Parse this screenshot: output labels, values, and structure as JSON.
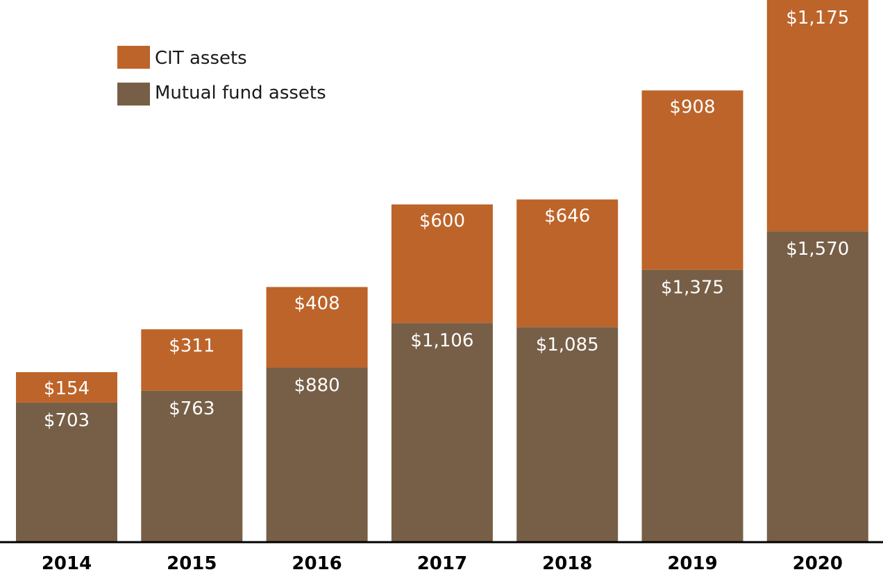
{
  "chart_data": {
    "type": "bar",
    "stacked": true,
    "categories": [
      "2014",
      "2015",
      "2016",
      "2017",
      "2018",
      "2019",
      "2020"
    ],
    "series": [
      {
        "name": "Mutual fund assets",
        "color": "#775F47",
        "values": [
          703,
          763,
          880,
          1106,
          1085,
          1375,
          1570
        ],
        "labels": [
          "$703",
          "$763",
          "$880",
          "$1,106",
          "$1,085",
          "$1,375",
          "$1,570"
        ]
      },
      {
        "name": "CIT assets",
        "color": "#BD642A",
        "values": [
          154,
          311,
          408,
          600,
          646,
          908,
          1175
        ],
        "labels": [
          "$154",
          "$311",
          "$408",
          "$600",
          "$646",
          "$908",
          "$1,175"
        ]
      }
    ],
    "legend_position": "top-left",
    "legend_order": [
      "CIT assets",
      "Mutual fund assets"
    ],
    "grid": false,
    "axis_color": "#000000"
  }
}
